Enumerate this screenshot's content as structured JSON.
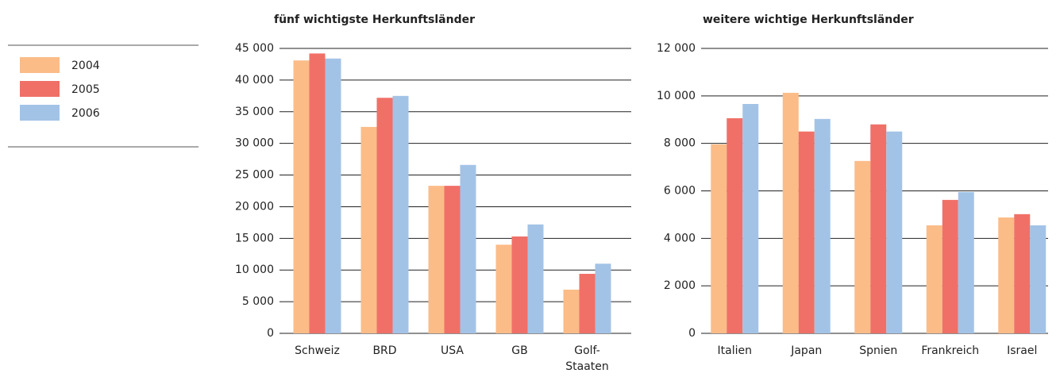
{
  "chart_data": [
    {
      "type": "bar",
      "title": "fünf wichtigste Herkunftsländer",
      "categories": [
        "Schweiz",
        "BRD",
        "USA",
        "GB",
        [
          "Golf-",
          "Staaten"
        ]
      ],
      "series": [
        {
          "name": "2004",
          "color": "#fbbc88",
          "values": [
            43100,
            32600,
            23300,
            14000,
            6900
          ]
        },
        {
          "name": "2005",
          "color": "#f07068",
          "values": [
            44200,
            37200,
            23300,
            15300,
            9400
          ]
        },
        {
          "name": "2006",
          "color": "#a3c3e6",
          "values": [
            43400,
            37500,
            26600,
            17200,
            11000
          ]
        }
      ],
      "ylim": [
        0,
        45000
      ],
      "yticks": [
        0,
        {
          "value": 5000,
          "label": "5 000"
        },
        {
          "value": 10000,
          "label": "10 000"
        },
        {
          "value": 15000,
          "label": "15 000"
        },
        {
          "value": 20000,
          "label": "20 000"
        },
        {
          "value": 25000,
          "label": "25 000"
        },
        {
          "value": 30000,
          "label": "30 000"
        },
        {
          "value": 35000,
          "label": "35 000"
        },
        {
          "value": 40000,
          "label": "40 000"
        },
        {
          "value": 45000,
          "label": "45 000"
        }
      ],
      "grid": true
    },
    {
      "type": "bar",
      "title": "weitere wichtige Herkunftsländer",
      "categories": [
        "Italien",
        "Japan",
        "Spnien",
        "Frankreich",
        "Israel"
      ],
      "series": [
        {
          "color": "#fbbc88",
          "values": [
            7960,
            10130,
            7260,
            4550,
            4880
          ]
        },
        {
          "color": "#f07068",
          "values": [
            9060,
            8500,
            8800,
            5620,
            5020
          ]
        },
        {
          "color": "#a3c3e6",
          "values": [
            9660,
            9030,
            8500,
            5950,
            4550
          ]
        }
      ],
      "ylim": [
        0,
        12000
      ],
      "yticks": [
        0,
        {
          "value": 2000,
          "label": "2 000"
        },
        {
          "value": 4000,
          "label": "4 000"
        },
        {
          "value": 6000,
          "label": "6 000"
        },
        {
          "value": 8000,
          "label": "8 000"
        },
        {
          "value": 10000,
          "label": "10 000"
        },
        {
          "value": 12000,
          "label": "12 000"
        }
      ],
      "grid": true
    }
  ]
}
